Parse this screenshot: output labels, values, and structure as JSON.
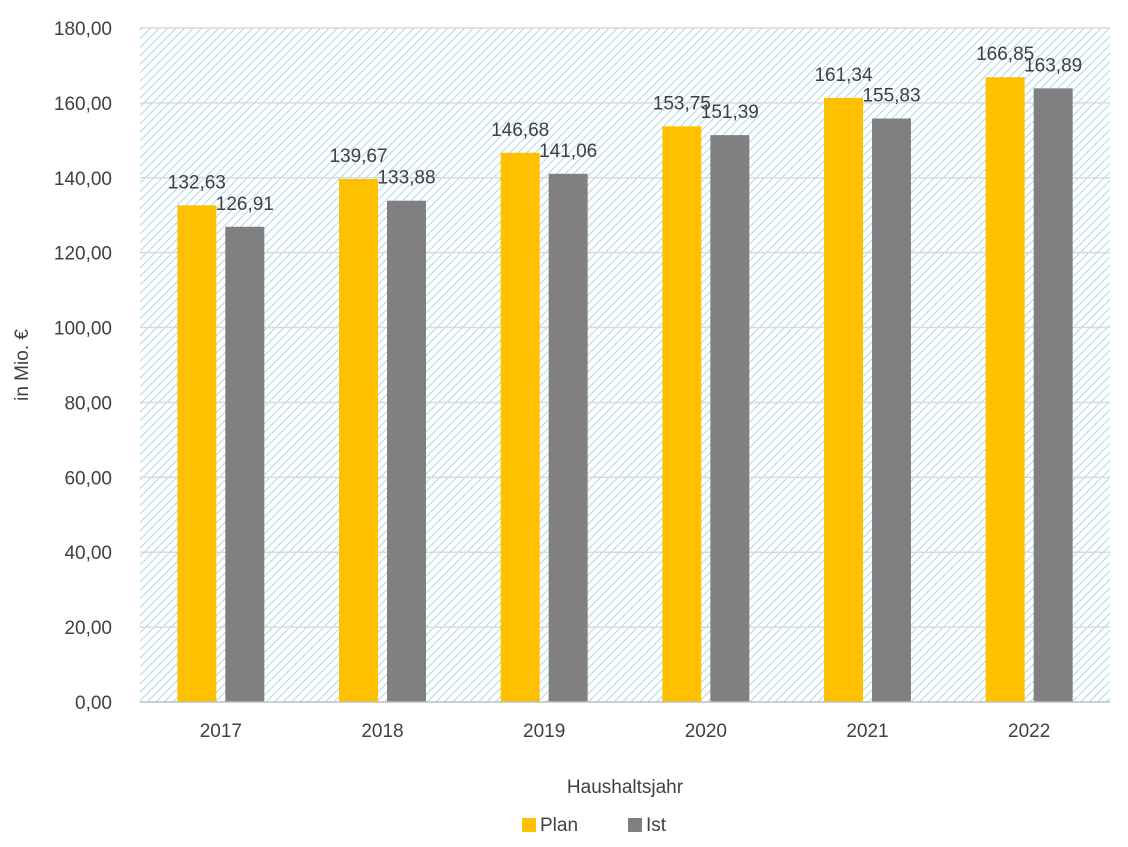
{
  "chart_data": {
    "type": "bar",
    "categories": [
      "2017",
      "2018",
      "2019",
      "2020",
      "2021",
      "2022"
    ],
    "series": [
      {
        "name": "Plan",
        "values": [
          132.63,
          139.67,
          146.68,
          153.75,
          161.34,
          166.85
        ],
        "labels": [
          "132,63",
          "139,67",
          "146,68",
          "153,75",
          "161,34",
          "166,85"
        ],
        "color": "#FFC000"
      },
      {
        "name": "Ist",
        "values": [
          126.91,
          133.88,
          141.06,
          151.39,
          155.83,
          163.89
        ],
        "labels": [
          "126,91",
          "133,88",
          "141,06",
          "151,39",
          "155,83",
          "163,89"
        ],
        "color": "#808080"
      }
    ],
    "xlabel": "Haushaltsjahr",
    "ylabel": "in Mio. €",
    "ylim": [
      0,
      180
    ],
    "yticks": [
      0,
      20,
      40,
      60,
      80,
      100,
      120,
      140,
      160,
      180
    ],
    "ytick_labels": [
      "0,00",
      "20,00",
      "40,00",
      "60,00",
      "80,00",
      "100,00",
      "120,00",
      "140,00",
      "160,00",
      "180,00"
    ],
    "grid": true,
    "legend_position": "bottom",
    "plot_background": "light blue diagonal hatch",
    "hatch_color": "#A8D8E6",
    "grid_color": "#D9D9D9",
    "text_color": "#404040"
  }
}
